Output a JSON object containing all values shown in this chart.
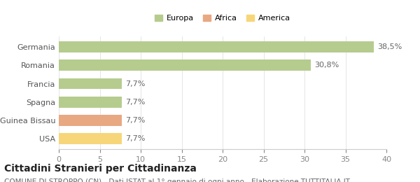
{
  "categories": [
    "Germania",
    "Romania",
    "Francia",
    "Spagna",
    "Guinea Bissau",
    "USA"
  ],
  "values": [
    38.5,
    30.8,
    7.7,
    7.7,
    7.7,
    7.7
  ],
  "bar_colors": [
    "#b5cc8e",
    "#b5cc8e",
    "#b5cc8e",
    "#b5cc8e",
    "#e8a882",
    "#f7d67a"
  ],
  "labels": [
    "38,5%",
    "30,8%",
    "7,7%",
    "7,7%",
    "7,7%",
    "7,7%"
  ],
  "legend": [
    {
      "label": "Europa",
      "color": "#b5cc8e"
    },
    {
      "label": "Africa",
      "color": "#e8a882"
    },
    {
      "label": "America",
      "color": "#f7d67a"
    }
  ],
  "xlim": [
    0,
    40
  ],
  "xticks": [
    0,
    5,
    10,
    15,
    20,
    25,
    30,
    35,
    40
  ],
  "title": "Cittadini Stranieri per Cittadinanza",
  "subtitle": "COMUNE DI STROPPO (CN) - Dati ISTAT al 1° gennaio di ogni anno - Elaborazione TUTTITALIA.IT",
  "background_color": "#ffffff",
  "label_fontsize": 8,
  "tick_fontsize": 8,
  "title_fontsize": 10,
  "subtitle_fontsize": 7.5
}
